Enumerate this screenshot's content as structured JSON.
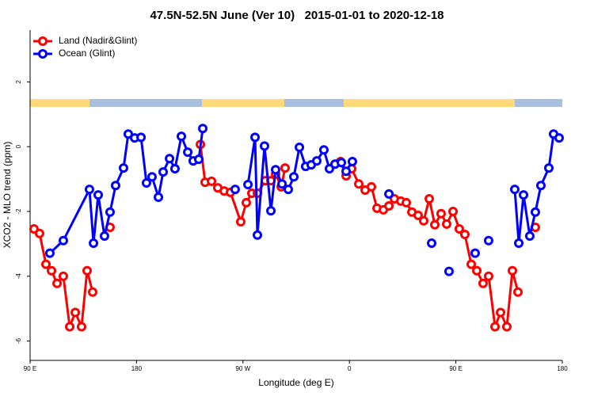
{
  "chart_data": {
    "type": "line",
    "title": "47.5N-52.5N June (Ver 10)   2015-01-01 to 2020-12-18",
    "x_label": "Longitude (deg E)",
    "y_label": "XCO2 - MLO trend (ppm)",
    "xlim": [
      90,
      540
    ],
    "ylim": [
      -6.6,
      3.6
    ],
    "xticks": [
      {
        "value": 90,
        "label": "90 E"
      },
      {
        "value": 180,
        "label": "180"
      },
      {
        "value": 270,
        "label": "90 W"
      },
      {
        "value": 360,
        "label": "0"
      },
      {
        "value": 450,
        "label": "90 E"
      },
      {
        "value": 540,
        "label": "180"
      }
    ],
    "yticks": [
      -6,
      -4,
      -2,
      0,
      2
    ],
    "grid": false,
    "legend": "top-left",
    "series": [
      {
        "name": "Land (Nadir&Glint)",
        "color": "#ff0000",
        "x": [
          93.3,
          98.0,
          103.4,
          108.1,
          112.8,
          118.1,
          123.5,
          128.2,
          133.5,
          138.2,
          142.9,
          null,
          157.6,
          null,
          234.0,
          238.0,
          243.4,
          248.7,
          254.1,
          259.4,
          268.1,
          272.8,
          277.5,
          282.2,
          288.9,
          293.6,
          297.6,
          302.3,
          305.6,
          null,
          352.5,
          357.2,
          361.9,
          367.9,
          373.3,
          378.6,
          383.3,
          388.7,
          393.4,
          398.0,
          403.4,
          408.1,
          412.8,
          418.1,
          422.8,
          427.5,
          432.2,
          437.5,
          442.2,
          447.6,
          452.9,
          457.6,
          463.0,
          467.7,
          473.0,
          477.7,
          483.1,
          487.8,
          493.1,
          497.8,
          502.5,
          null,
          517.2
        ],
        "values": [
          -2.54,
          -2.68,
          -3.63,
          -3.83,
          -4.22,
          -4.0,
          -5.56,
          -5.12,
          -5.56,
          -3.83,
          -4.49,
          null,
          -2.49,
          null,
          0.07,
          -1.1,
          -1.07,
          -1.27,
          -1.37,
          -1.41,
          -2.32,
          -1.73,
          -1.44,
          -1.44,
          -1.05,
          -1.05,
          -0.85,
          -1.24,
          -0.66,
          null,
          -0.46,
          -0.9,
          -0.68,
          -1.15,
          -1.34,
          -1.24,
          -1.9,
          -1.95,
          -1.83,
          -1.61,
          -1.68,
          -1.73,
          -2.02,
          -2.12,
          -2.29,
          -1.61,
          -2.41,
          -2.07,
          -2.39,
          -2.0,
          -2.54,
          -2.71,
          -3.63,
          -3.83,
          -4.22,
          -4.0,
          -5.56,
          -5.12,
          -5.56,
          -3.83,
          -4.49,
          null,
          -2.49
        ]
      },
      {
        "name": "Ocean (Glint)",
        "color": "#0000ff",
        "x": [
          106.7,
          118.1,
          140.2,
          143.6,
          147.6,
          152.9,
          157.6,
          162.3,
          169.0,
          173.0,
          178.4,
          183.8,
          188.4,
          193.1,
          198.5,
          202.5,
          207.9,
          212.5,
          217.9,
          223.3,
          227.9,
          232.6,
          236.0,
          null,
          263.4,
          null,
          274.2,
          280.2,
          282.2,
          288.2,
          293.6,
          297.6,
          303.0,
          308.3,
          313.0,
          317.7,
          323.0,
          327.7,
          332.4,
          338.4,
          343.1,
          347.8,
          353.2,
          357.2,
          362.5,
          null,
          393.4,
          null,
          429.5,
          null,
          444.2,
          null,
          466.3,
          null,
          477.7,
          null,
          499.8,
          503.2,
          507.2,
          512.5,
          517.2,
          521.9,
          528.6,
          532.6,
          537.3
        ],
        "values": [
          -3.29,
          -2.9,
          -1.32,
          -2.98,
          -1.49,
          -2.76,
          -2.02,
          -1.2,
          -0.66,
          0.39,
          0.27,
          0.29,
          -1.12,
          -0.93,
          -1.56,
          -0.78,
          -0.37,
          -0.68,
          0.32,
          -0.17,
          -0.44,
          -0.39,
          0.56,
          null,
          -1.32,
          null,
          -1.17,
          0.29,
          -2.73,
          0.02,
          -1.98,
          -0.71,
          -1.15,
          -1.32,
          -0.93,
          -0.02,
          -0.61,
          -0.56,
          -0.44,
          -0.1,
          -0.68,
          -0.54,
          -0.49,
          -0.76,
          -0.46,
          null,
          -1.46,
          null,
          -2.98,
          null,
          -3.85,
          null,
          -3.29,
          null,
          -2.9,
          null,
          -1.32,
          -2.98,
          -1.49,
          -2.76,
          -2.02,
          -1.2,
          -0.66,
          0.39,
          0.27
        ]
      }
    ]
  }
}
